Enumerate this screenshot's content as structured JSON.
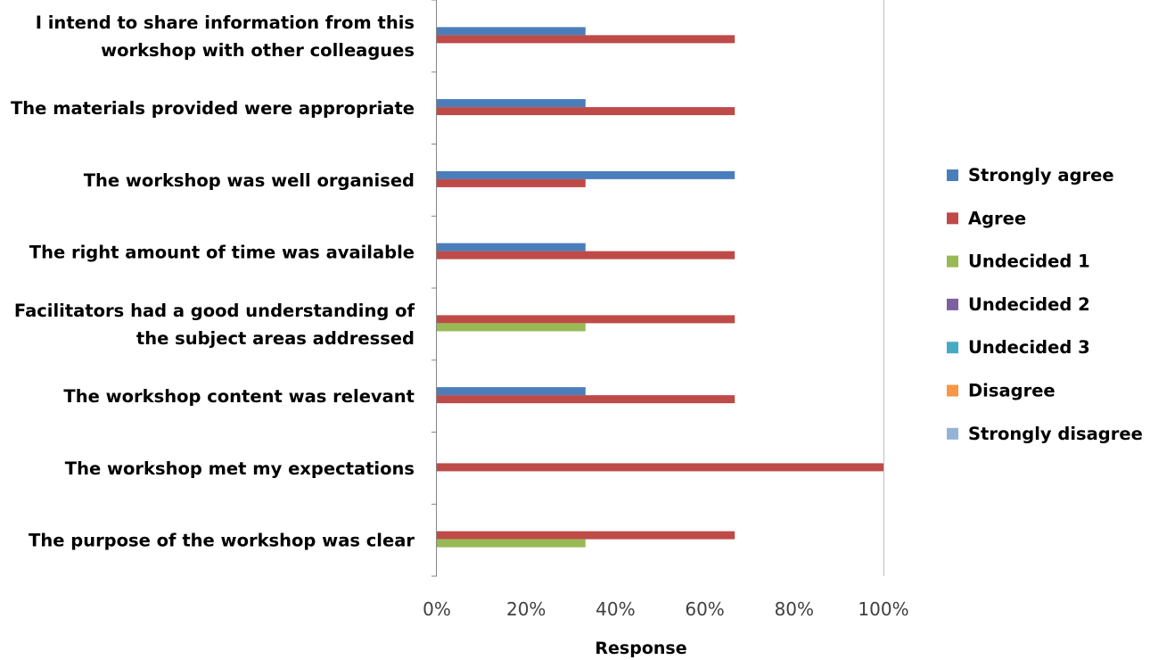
{
  "chart_data": {
    "type": "bar",
    "orientation": "horizontal",
    "title": "",
    "xlabel": "Response",
    "ylabel": "",
    "xlim": [
      0,
      100
    ],
    "x_ticks": [
      "0%",
      "20%",
      "40%",
      "60%",
      "80%",
      "100%"
    ],
    "grid": "vertical line at 100% only",
    "legend_position": "right",
    "categories": [
      {
        "lines": [
          "The purpose of the workshop was clear"
        ]
      },
      {
        "lines": [
          "The workshop met my expectations"
        ]
      },
      {
        "lines": [
          "The workshop content was relevant"
        ]
      },
      {
        "lines": [
          "Facilitators had a good understanding of",
          "the subject areas addressed"
        ]
      },
      {
        "lines": [
          "The right amount of time was available"
        ]
      },
      {
        "lines": [
          "The workshop was well organised"
        ]
      },
      {
        "lines": [
          "The materials provided were appropriate"
        ]
      },
      {
        "lines": [
          "I intend to share information from this",
          "workshop with other colleagues"
        ]
      }
    ],
    "series": [
      {
        "name": "Strongly agree",
        "color": "#4a7ebb",
        "values": [
          0,
          0,
          33.3,
          0,
          33.3,
          66.7,
          33.3,
          33.3
        ]
      },
      {
        "name": "Agree",
        "color": "#be4b48",
        "values": [
          66.7,
          100,
          66.7,
          66.7,
          66.7,
          33.3,
          66.7,
          66.7
        ]
      },
      {
        "name": "Undecided 1",
        "color": "#98b954",
        "values": [
          33.3,
          0,
          0,
          33.3,
          0,
          0,
          0,
          0
        ]
      },
      {
        "name": "Undecided 2",
        "color": "#7d60a0",
        "values": [
          0,
          0,
          0,
          0,
          0,
          0,
          0,
          0
        ]
      },
      {
        "name": "Undecided 3",
        "color": "#46aac4",
        "values": [
          0,
          0,
          0,
          0,
          0,
          0,
          0,
          0
        ]
      },
      {
        "name": "Disagree",
        "color": "#f79646",
        "values": [
          0,
          0,
          0,
          0,
          0,
          0,
          0,
          0
        ]
      },
      {
        "name": "Strongly disagree",
        "color": "#95b3d7",
        "values": [
          0,
          0,
          0,
          0,
          0,
          0,
          0,
          0
        ]
      }
    ]
  }
}
